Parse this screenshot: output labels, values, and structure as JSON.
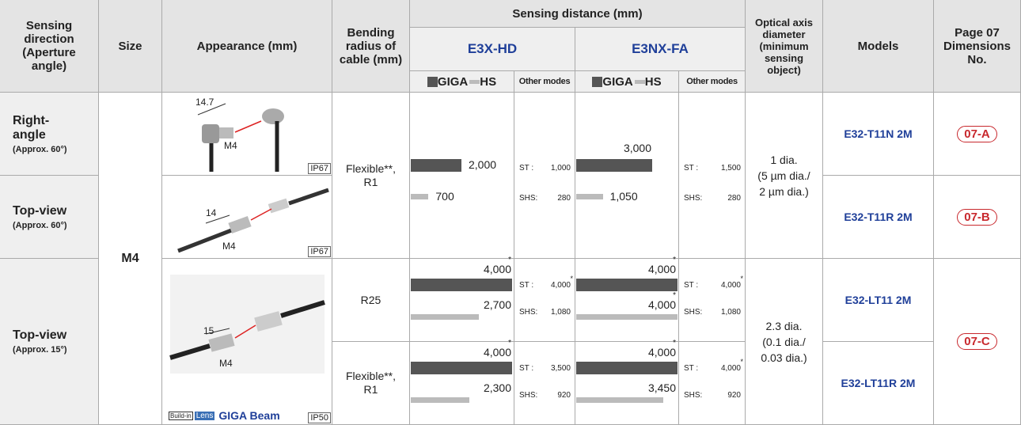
{
  "header": {
    "sensing_direction": "Sensing direction (Aperture angle)",
    "size": "Size",
    "appearance": "Appearance (mm)",
    "bending_radius": "Bending radius of cable (mm)",
    "sensing_distance": "Sensing distance (mm)",
    "e3x": "E3X-HD",
    "e3nx": "E3NX-FA",
    "legend_giga": "GIGA",
    "legend_hs": "HS",
    "other_modes": "Other modes",
    "optical_axis": "Optical axis diameter (minimum sensing object)",
    "models": "Models",
    "dimensions": "Page 07 Dimensions No.",
    "st_label": "ST :",
    "shs_label": "SHS:"
  },
  "size": "M4",
  "fibers": [
    {
      "direction": "Right-angle",
      "angle": "(Approx. 60°)",
      "dimension": "14.7",
      "thread": "M4",
      "protection": "IP67",
      "model": "E32-T11N 2M",
      "page": "07-A"
    },
    {
      "direction": "Top-view",
      "angle": "(Approx. 60°)",
      "dimension": "14",
      "thread": "M4",
      "protection": "IP67",
      "model": "E32-T11R 2M",
      "page": "07-B"
    },
    {
      "direction": "Top-view",
      "angle": "(Approx. 15°)",
      "dimension": "15",
      "thread": "M4",
      "protection": "IP50",
      "badge": [
        "Build-in",
        "Lens",
        "GIGA Beam"
      ],
      "models": [
        "E32-LT11 2M",
        "E32-LT11R 2M"
      ],
      "page": "07-C"
    }
  ],
  "bending": [
    "Flexible**, R1",
    "R25",
    "Flexible**, R1"
  ],
  "sensing": [
    {
      "e3x": {
        "giga": {
          "value": 2000,
          "label": "2,000"
        },
        "hs": {
          "value": 700,
          "label": "700"
        },
        "st": "1,000",
        "shs": "280"
      },
      "e3nx": {
        "giga": {
          "value": 3000,
          "label": "3,000"
        },
        "hs": {
          "value": 1050,
          "label": "1,050"
        },
        "st": "1,500",
        "shs": "280"
      }
    },
    {
      "e3x": {
        "giga": {
          "value": 4000,
          "label": "4,000",
          "asterisk": "*"
        },
        "hs": {
          "value": 2700,
          "label": "2,700"
        },
        "st": "4,000",
        "st_asterisk": "*",
        "shs": "1,080"
      },
      "e3nx": {
        "giga": {
          "value": 4000,
          "label": "4,000",
          "asterisk": "*"
        },
        "hs": {
          "value": 4000,
          "label": "4,000",
          "asterisk": "*"
        },
        "st": "4,000",
        "st_asterisk": "*",
        "shs": "1,080"
      }
    },
    {
      "e3x": {
        "giga": {
          "value": 4000,
          "label": "4,000",
          "asterisk": "*"
        },
        "hs": {
          "value": 2300,
          "label": "2,300"
        },
        "st": "3,500",
        "shs": "920"
      },
      "e3nx": {
        "giga": {
          "value": 4000,
          "label": "4,000",
          "asterisk": "*"
        },
        "hs": {
          "value": 3450,
          "label": "3,450"
        },
        "st": "4,000",
        "st_asterisk": "*",
        "shs": "920"
      }
    }
  ],
  "optical": [
    [
      "1 dia.",
      "(5 µm dia./",
      "2 µm dia.)"
    ],
    [
      "2.3 dia.",
      "(0.1 dia./",
      "0.03 dia.)"
    ]
  ]
}
